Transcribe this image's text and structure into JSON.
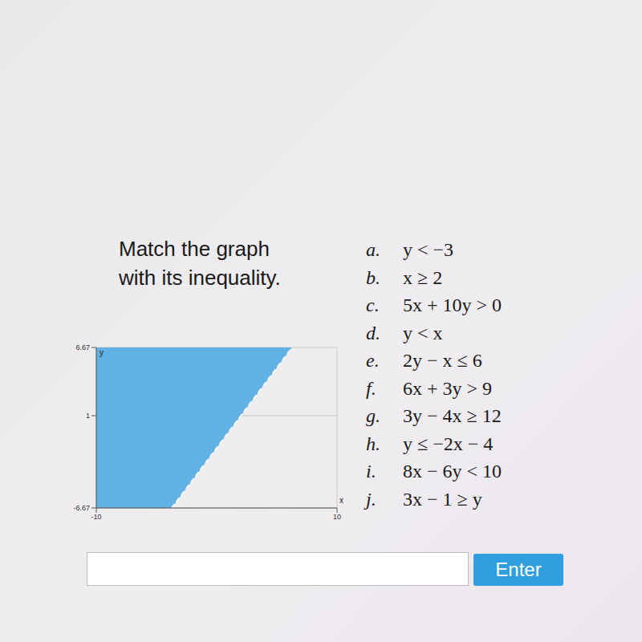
{
  "prompt": {
    "lines": [
      "Match the graph",
      "with its inequality."
    ]
  },
  "options": [
    {
      "letter": "a.",
      "text": "y < −3"
    },
    {
      "letter": "b.",
      "text": "x ≥ 2"
    },
    {
      "letter": "c.",
      "text": "5x + 10y > 0"
    },
    {
      "letter": "d.",
      "text": "y < x"
    },
    {
      "letter": "e.",
      "text": "2y − x ≤ 6"
    },
    {
      "letter": "f.",
      "text": "6x + 3y > 9"
    },
    {
      "letter": "g.",
      "text": "3y − 4x ≥ 12"
    },
    {
      "letter": "h.",
      "text": "y ≤ −2x − 4"
    },
    {
      "letter": "i.",
      "text": "8x − 6y < 10"
    },
    {
      "letter": "j.",
      "text": "3x − 1 ≥ y"
    }
  ],
  "button": "Enter",
  "chart_data": {
    "type": "area",
    "x_label": "x",
    "y_label": "y",
    "xlim": [
      -10,
      10
    ],
    "ylim": [
      -6.67,
      6.67
    ],
    "xticks": [
      -10,
      10
    ],
    "yticks": [
      -6.67,
      1,
      6.67
    ],
    "grid": true,
    "series": [
      {
        "type": "area",
        "color": "#5aaee4",
        "x": [
          -10,
          -3.75,
          6.25
        ],
        "low": [
          -6.67,
          -6.67,
          6.67
        ],
        "high": [
          6.67,
          6.67,
          6.67
        ]
      },
      {
        "type": "line",
        "color": "#ffffff",
        "line_style": "dashed",
        "x": [
          -3.75,
          6.25
        ],
        "values": [
          -6.67,
          6.67
        ]
      }
    ]
  }
}
